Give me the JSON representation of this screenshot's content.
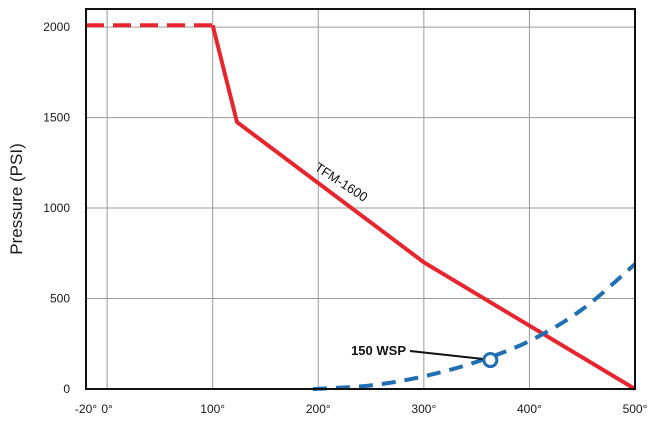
{
  "chart_data": {
    "type": "line",
    "title": "",
    "xlabel": "",
    "ylabel": "Pressure (PSI)",
    "xlim": [
      -20,
      500
    ],
    "ylim": [
      0,
      2100
    ],
    "x_ticks": [
      -20,
      0,
      100,
      200,
      300,
      400,
      500
    ],
    "x_tick_labels": [
      "-20°",
      "0°",
      "100°",
      "200°",
      "300°",
      "400°",
      "500°"
    ],
    "y_ticks": [
      0,
      500,
      1000,
      1500,
      2000
    ],
    "y_tick_labels": [
      "0",
      "500",
      "1000",
      "1500",
      "2000"
    ],
    "grid": true,
    "series": [
      {
        "name": "TFM-1600",
        "color": "#e8252f",
        "segments": [
          {
            "style": "dashed",
            "x": [
              -20,
              100
            ],
            "y": [
              2010,
              2010
            ]
          },
          {
            "style": "solid",
            "x": [
              100,
              123,
              300,
              500
            ],
            "y": [
              2010,
              1475,
              700,
              0
            ]
          }
        ]
      },
      {
        "name": "",
        "color": "#1f6fb5",
        "segments": [
          {
            "style": "dashed",
            "x": [
              195,
              250,
              300,
              350,
              400,
              450,
              500
            ],
            "y": [
              0,
              20,
              70,
              150,
              265,
              440,
              690
            ]
          }
        ]
      }
    ],
    "annotations": [
      {
        "text": "TFM-1600",
        "series": 0
      },
      {
        "text": "150 WSP",
        "series": 1,
        "point": {
          "x": 363,
          "y": 160
        }
      }
    ]
  }
}
